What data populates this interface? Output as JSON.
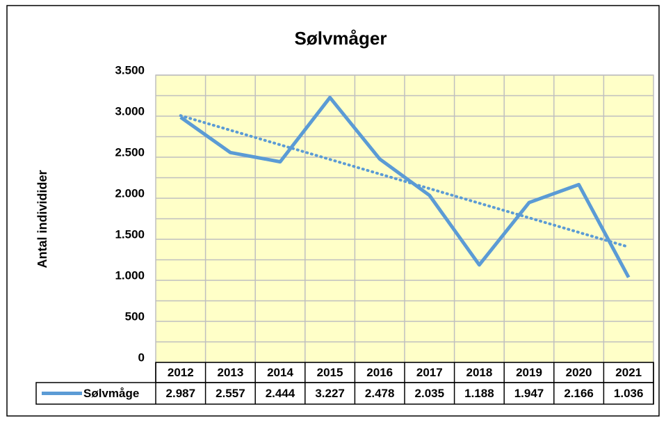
{
  "chart_data": {
    "type": "line",
    "title": "Sølvmåger",
    "y_label": "Antal individider",
    "categories": [
      "2012",
      "2013",
      "2014",
      "2015",
      "2016",
      "2017",
      "2018",
      "2019",
      "2020",
      "2021"
    ],
    "series": [
      {
        "name": "Sølvmåge",
        "color": "#5b9bd5",
        "values": [
          2987,
          2557,
          2444,
          3227,
          2478,
          2035,
          1188,
          1947,
          2166,
          1036
        ],
        "value_labels": [
          "2.987",
          "2.557",
          "2.444",
          "3.227",
          "2.478",
          "2.035",
          "1.188",
          "1.947",
          "2.166",
          "1.036"
        ]
      }
    ],
    "trendline": "linear",
    "ylim": [
      0,
      3500
    ],
    "yticks": [
      0,
      500,
      {
        "value": 1000,
        "label": "1.000"
      },
      {
        "value": 1500,
        "label": "1.500"
      },
      {
        "value": 2000,
        "label": "2.000"
      },
      {
        "value": 2500,
        "label": "2.500"
      },
      {
        "value": 3000,
        "label": "3.000"
      },
      {
        "value": 3500,
        "label": "3.500"
      }
    ],
    "minor_yticks": [
      250,
      750,
      1250,
      1750,
      2250,
      2750,
      3250
    ],
    "grid": true,
    "plot_background": "#ffffc8",
    "data_table": true
  }
}
